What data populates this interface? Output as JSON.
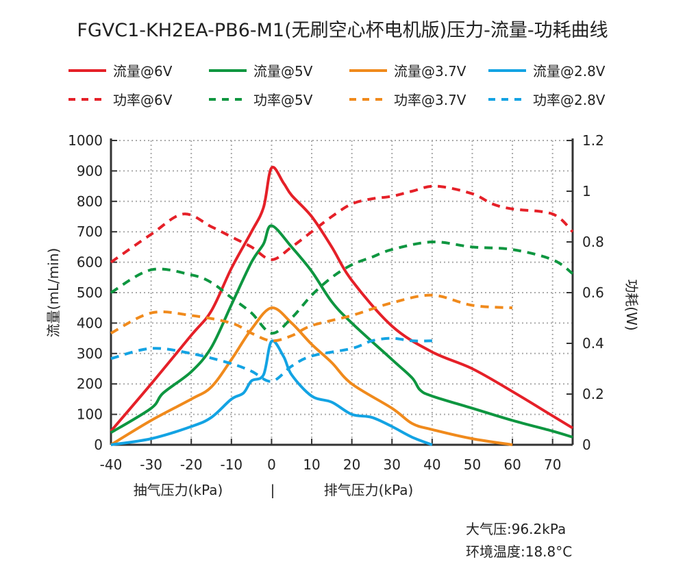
{
  "title": "FGVC1-KH2EA-PB6-M1(无刷空心杯电机版)压力-流量-功耗曲线",
  "notes": [
    "大气压:96.2kPa",
    "环境温度:18.8°C"
  ],
  "chart_data": {
    "type": "line",
    "title": "FGVC1-KH2EA-PB6-M1(无刷空心杯电机版)压力-流量-功耗曲线",
    "xlabel": "kPa",
    "xlabel_left": "抽气压力(kPa)",
    "xlabel_sep": "|",
    "xlabel_right": "排气压力(kPa)",
    "ylabel": "流量(mL/min)",
    "y2label": "功耗(W)",
    "xlim": [
      -40,
      75
    ],
    "ylim": [
      0,
      1000
    ],
    "y2lim": [
      0,
      1.2
    ],
    "xticks": [
      "-40",
      "-30",
      "-20",
      "-10",
      "0",
      "10",
      "20",
      "30",
      "40",
      "50",
      "60",
      "70"
    ],
    "yticks": [
      "0",
      "100",
      "200",
      "300",
      "400",
      "500",
      "600",
      "700",
      "800",
      "900",
      "1000"
    ],
    "y2ticks": [
      "0",
      "0.2",
      "0.4",
      "0.6",
      "0.8",
      "1",
      "1.2"
    ],
    "grid": true,
    "legend": "top",
    "series": [
      {
        "name": "流量@6V",
        "axis": "left",
        "style": "solid",
        "color": "#e52028",
        "x": [
          -40,
          -30,
          -20,
          -15,
          -10,
          -5,
          -2,
          0,
          3,
          5,
          10,
          15,
          20,
          30,
          40,
          50,
          60,
          70,
          75
        ],
        "y": [
          45,
          200,
          360,
          440,
          580,
          700,
          780,
          910,
          860,
          820,
          750,
          650,
          540,
          390,
          305,
          250,
          175,
          95,
          55
        ]
      },
      {
        "name": "流量@5V",
        "axis": "left",
        "style": "solid",
        "color": "#0e9640",
        "x": [
          -40,
          -30,
          -27,
          -20,
          -15,
          -10,
          -5,
          -2,
          0,
          5,
          10,
          15,
          20,
          30,
          35,
          37,
          40,
          50,
          60,
          70,
          75
        ],
        "y": [
          40,
          120,
          170,
          240,
          320,
          460,
          600,
          660,
          720,
          650,
          570,
          470,
          400,
          280,
          220,
          180,
          160,
          120,
          80,
          45,
          25
        ]
      },
      {
        "name": "流量@3.7V",
        "axis": "left",
        "style": "solid",
        "color": "#f08a1c",
        "x": [
          -40,
          -30,
          -20,
          -15,
          -10,
          -5,
          0,
          5,
          10,
          15,
          20,
          30,
          35,
          40,
          50,
          60
        ],
        "y": [
          0,
          80,
          150,
          190,
          280,
          380,
          450,
          400,
          330,
          270,
          200,
          120,
          70,
          50,
          20,
          0
        ]
      },
      {
        "name": "流量@2.8V",
        "axis": "left",
        "style": "solid",
        "color": "#13a3e3",
        "x": [
          -40,
          -30,
          -20,
          -15,
          -10,
          -7,
          -5,
          -2,
          0,
          3,
          5,
          10,
          15,
          20,
          25,
          30,
          35,
          40
        ],
        "y": [
          0,
          20,
          60,
          90,
          150,
          170,
          210,
          230,
          340,
          290,
          230,
          160,
          140,
          100,
          90,
          60,
          25,
          0
        ]
      },
      {
        "name": "功率@6V",
        "axis": "right",
        "style": "dashed",
        "color": "#e52028",
        "x": [
          -40,
          -30,
          -22,
          -15,
          -10,
          -5,
          0,
          5,
          10,
          15,
          20,
          25,
          30,
          35,
          41,
          50,
          55,
          60,
          70,
          75
        ],
        "y": [
          0.72,
          0.83,
          0.91,
          0.86,
          0.82,
          0.78,
          0.73,
          0.78,
          0.84,
          0.9,
          0.95,
          0.97,
          0.98,
          1.0,
          1.02,
          0.99,
          0.95,
          0.93,
          0.91,
          0.84
        ]
      },
      {
        "name": "功率@5V",
        "axis": "right",
        "style": "dashed",
        "color": "#0e9640",
        "x": [
          -40,
          -30,
          -20,
          -15,
          -10,
          -5,
          0,
          5,
          10,
          15,
          20,
          25,
          30,
          40,
          50,
          60,
          70,
          75
        ],
        "y": [
          0.6,
          0.69,
          0.67,
          0.64,
          0.58,
          0.52,
          0.44,
          0.5,
          0.59,
          0.66,
          0.71,
          0.74,
          0.77,
          0.8,
          0.78,
          0.77,
          0.73,
          0.675
        ]
      },
      {
        "name": "功率@3.7V",
        "axis": "right",
        "style": "dashed",
        "color": "#f08a1c",
        "x": [
          -40,
          -30,
          -20,
          -10,
          -5,
          0,
          5,
          10,
          20,
          30,
          40,
          50,
          60
        ],
        "y": [
          0.44,
          0.52,
          0.51,
          0.48,
          0.44,
          0.41,
          0.43,
          0.47,
          0.51,
          0.56,
          0.59,
          0.55,
          0.54
        ]
      },
      {
        "name": "功率@2.8V",
        "axis": "right",
        "style": "dashed",
        "color": "#13a3e3",
        "x": [
          -40,
          -30,
          -20,
          -10,
          -5,
          0,
          5,
          10,
          20,
          25,
          30,
          35,
          40
        ],
        "y": [
          0.34,
          0.38,
          0.36,
          0.32,
          0.29,
          0.25,
          0.31,
          0.35,
          0.38,
          0.41,
          0.42,
          0.41,
          0.41
        ]
      }
    ]
  }
}
